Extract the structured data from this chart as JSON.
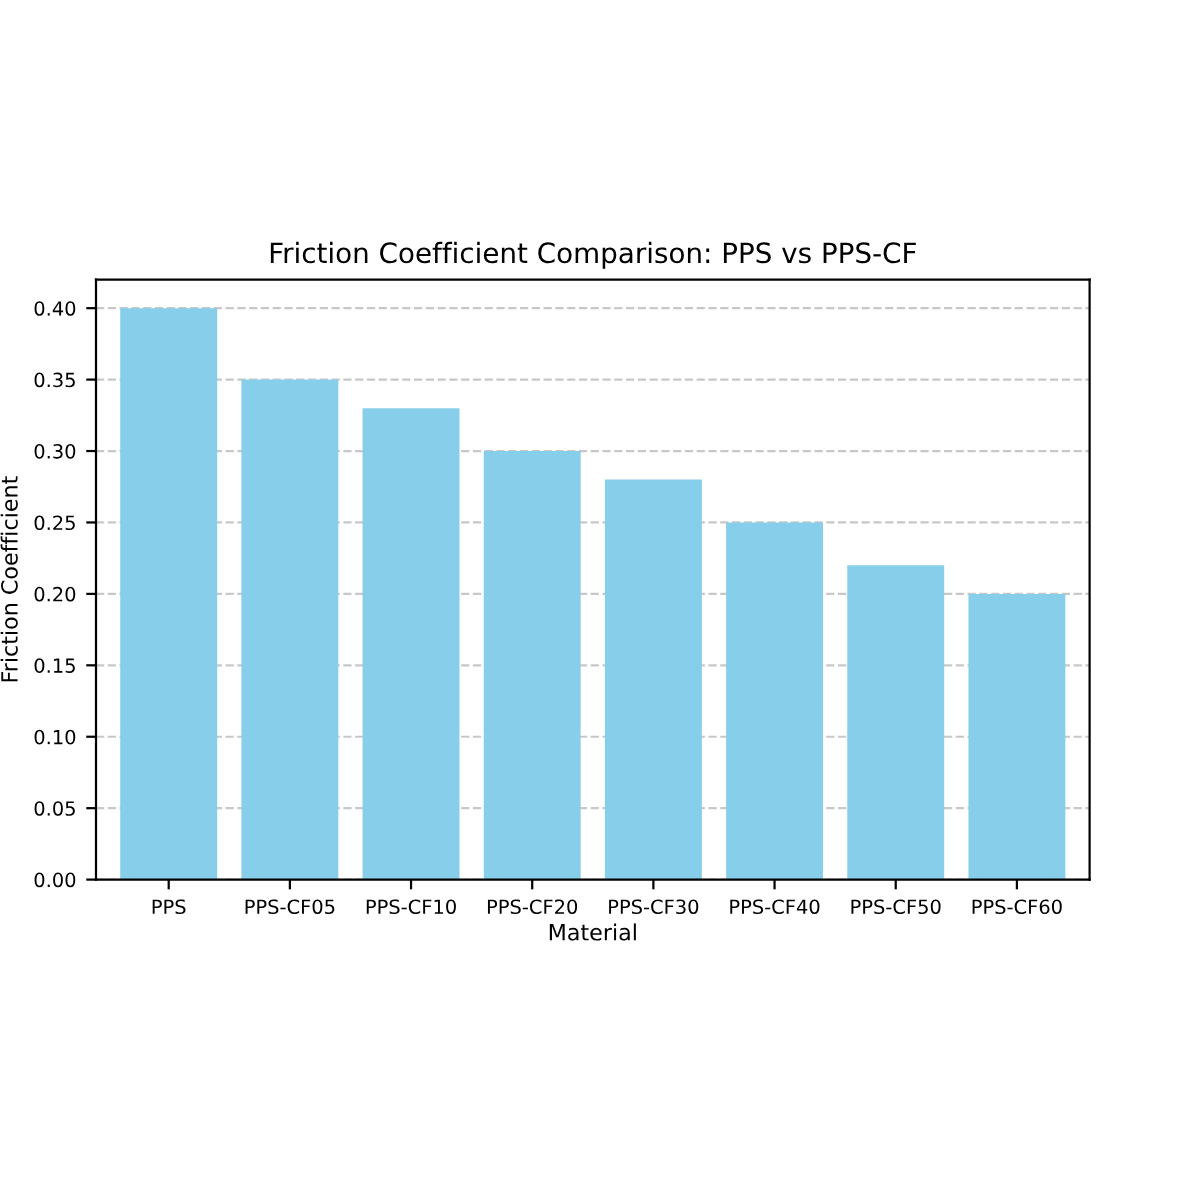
{
  "chart_data": {
    "type": "bar",
    "title": "Friction Coefficient Comparison: PPS vs PPS-CF",
    "xlabel": "Material",
    "ylabel": "Friction Coefficient",
    "categories": [
      "PPS",
      "PPS-CF05",
      "PPS-CF10",
      "PPS-CF20",
      "PPS-CF30",
      "PPS-CF40",
      "PPS-CF50",
      "PPS-CF60"
    ],
    "values": [
      0.4,
      0.35,
      0.33,
      0.3,
      0.28,
      0.25,
      0.22,
      0.2
    ],
    "color": "#87ceeb",
    "ylim": [
      0,
      0.42
    ],
    "yticks": [
      {
        "value": 0,
        "label": "0.00"
      },
      {
        "value": 0.05,
        "label": "0.05"
      },
      {
        "value": 0.1,
        "label": "0.10"
      },
      {
        "value": 0.15,
        "label": "0.15"
      },
      {
        "value": 0.2,
        "label": "0.20"
      },
      {
        "value": 0.25,
        "label": "0.25"
      },
      {
        "value": 0.3,
        "label": "0.30"
      },
      {
        "value": 0.35,
        "label": "0.35"
      },
      {
        "value": 0.4,
        "label": "0.40"
      }
    ],
    "grid": "y",
    "line_style": "dashed"
  }
}
